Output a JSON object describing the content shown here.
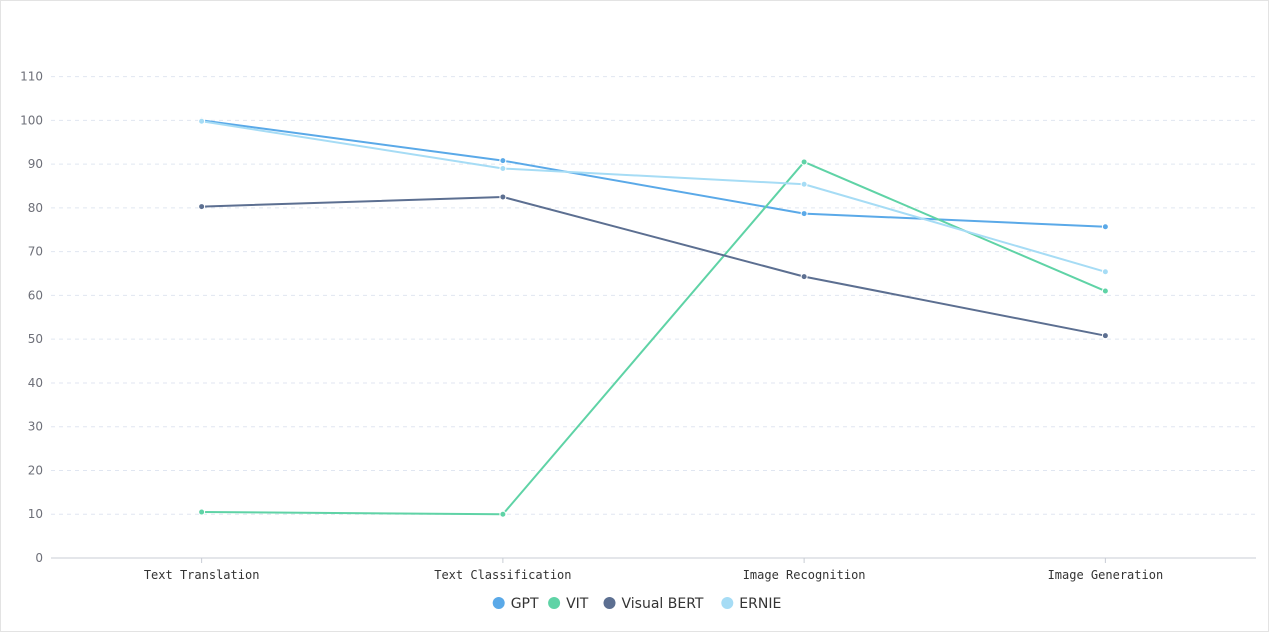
{
  "chart_data": {
    "type": "line",
    "categories": [
      "Text Translation",
      "Text Classification",
      "Image Recognition",
      "Image Generation"
    ],
    "ylim": [
      0,
      110
    ],
    "yticks": [
      0,
      10,
      20,
      30,
      40,
      50,
      60,
      70,
      80,
      90,
      100,
      110
    ],
    "grid": true,
    "legend_position": "bottom",
    "series": [
      {
        "name": "GPT",
        "color": "#5aa9e8",
        "values": [
          100,
          90.8,
          78.7,
          75.7
        ]
      },
      {
        "name": "VIT",
        "color": "#5fd3a6",
        "values": [
          10.5,
          10,
          90.5,
          61
        ]
      },
      {
        "name": "Visual BERT",
        "color": "#5c6f91",
        "values": [
          80.3,
          82.5,
          64.3,
          50.8
        ]
      },
      {
        "name": "ERNIE",
        "color": "#a6dcf5",
        "values": [
          99.8,
          89,
          85.4,
          65.4
        ]
      }
    ]
  }
}
